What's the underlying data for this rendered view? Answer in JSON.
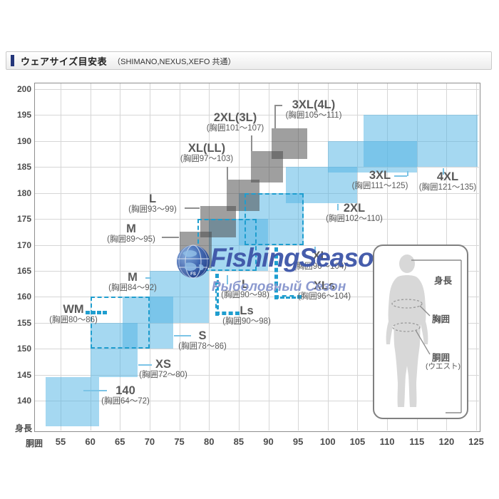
{
  "header": {
    "title": "ウェアサイズ目安表",
    "subtitle": "（SHIMANO,NEXUS,XEFO 共通）"
  },
  "watermark": {
    "line1": "FishingSeason.ru",
    "line2": "Рыболовный Сезон"
  },
  "diagram": {
    "height_label": "身長",
    "chest_label": "胸囲",
    "waist_label": "胴囲",
    "waist_sub_label": "(ウエスト)"
  },
  "chart_data": {
    "type": "size-grid-area",
    "title": "ウェアサイズ目安表（SHIMANO,NEXUS,XEFO 共通）",
    "xlabel": "胴囲",
    "ylabel": "身長",
    "grid": true,
    "xlim": [
      50.6,
      125.5
    ],
    "ylim": [
      135,
      201.2
    ],
    "x_ticks": [
      55,
      60,
      65,
      70,
      75,
      80,
      85,
      90,
      95,
      100,
      105,
      110,
      115,
      120,
      125
    ],
    "y_ticks": [
      200,
      195,
      190,
      185,
      180,
      175,
      170,
      165,
      160,
      155,
      150,
      145,
      140
    ],
    "y_axis_bottom_label": "身長",
    "colors": {
      "blue_box": "#A5D8F1",
      "gray_box": "#9F9F9F",
      "dashed_box_border": "#1f9ecf",
      "label_text": "#5a5a5a",
      "watermark_blue": "#3d55a8"
    },
    "series": [
      {
        "name": "blue-solid",
        "style": "blue",
        "boxes": [
          {
            "id": "b140",
            "size": "140",
            "chest": "(胸囲64～72)",
            "waist_range": [
              52.5,
              61.5
            ],
            "height_range": [
              135,
              144.5
            ]
          },
          {
            "id": "bXS",
            "size": "XS",
            "chest": "(胸囲72～80)",
            "waist_range": [
              60,
              68
            ],
            "height_range": [
              144.5,
              155
            ]
          },
          {
            "id": "bS",
            "size": "S",
            "chest": "(胸囲78～86)",
            "waist_range": [
              65.5,
              74
            ],
            "height_range": [
              150,
              160
            ]
          },
          {
            "id": "bM",
            "size": "M",
            "chest": "(胸囲84～92)",
            "waist_range": [
              70,
              80
            ],
            "height_range": [
              155,
              165
            ]
          },
          {
            "id": "bL",
            "size": "L",
            "chest": "(胸囲90～98)",
            "waist_range": [
              80,
              90
            ],
            "height_range": [
              165,
              175
            ]
          },
          {
            "id": "bXL",
            "size": "XL",
            "chest": "(胸囲96～104)",
            "waist_range": [
              85,
              96
            ],
            "height_range": [
              170,
              180
            ]
          },
          {
            "id": "b2XL",
            "size": "2XL",
            "chest": "(胸囲102～110)",
            "waist_range": [
              93,
              105
            ],
            "height_range": [
              178,
              185
            ]
          },
          {
            "id": "b3XL",
            "size": "3XL",
            "chest": "(胸囲111～125)",
            "waist_range": [
              100,
              115
            ],
            "height_range": [
              184,
              190
            ]
          },
          {
            "id": "b4XL",
            "size": "4XL",
            "chest": "(胸囲121～135)",
            "waist_range": [
              106,
              125.3
            ],
            "height_range": [
              185,
              195
            ]
          }
        ]
      },
      {
        "name": "gray-solid",
        "style": "gray",
        "boxes": [
          {
            "id": "gM",
            "size": "M",
            "chest": "(胸囲89～95)",
            "waist_range": [
              75,
              80.5
            ],
            "height_range": [
              165.5,
              172.5
            ]
          },
          {
            "id": "gL",
            "size": "L",
            "chest": "(胸囲93～99)",
            "waist_range": [
              78.5,
              84.5
            ],
            "height_range": [
              171.5,
              177.5
            ]
          },
          {
            "id": "gXLLL",
            "size": "XL(LL)",
            "chest": "(胸囲97～103)",
            "waist_range": [
              83,
              88.5
            ],
            "height_range": [
              176.5,
              182.5
            ]
          },
          {
            "id": "g2XL3L",
            "size": "2XL(3L)",
            "chest": "(胸囲101～107)",
            "waist_range": [
              87,
              92.5
            ],
            "height_range": [
              182,
              188
            ]
          },
          {
            "id": "g3XL4L",
            "size": "3XL(4L)",
            "chest": "(胸囲105～111)",
            "waist_range": [
              90.5,
              96.5
            ],
            "height_range": [
              186.5,
              192.5
            ]
          }
        ]
      },
      {
        "name": "dashed-outline",
        "style": "dashed",
        "boxes": [
          {
            "id": "dWM",
            "size": "WM",
            "chest": "(胸囲80～86)",
            "waist_range": [
              60,
              70
            ],
            "height_range": [
              150,
              160
            ]
          },
          {
            "id": "dLs",
            "size": "Ls",
            "chest": "(胸囲90～98)",
            "waist_range": [
              78,
              88
            ],
            "height_range": [
              165,
              175
            ]
          },
          {
            "id": "dXLs",
            "size": "XLs",
            "chest": "(胸囲96～104)",
            "waist_range": [
              86,
              96
            ],
            "height_range": [
              170,
              180
            ]
          }
        ]
      }
    ]
  }
}
